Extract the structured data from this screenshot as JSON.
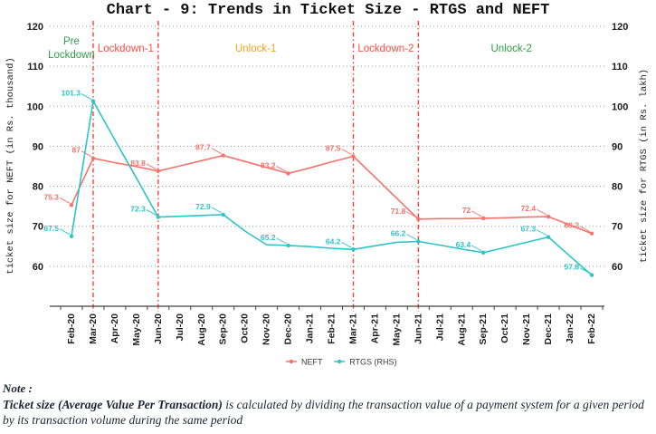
{
  "title": "Chart - 9: Trends in Ticket Size - RTGS and NEFT",
  "chart_data": {
    "type": "line",
    "x": [
      "Feb-20",
      "Mar-20",
      "Apr-20",
      "May-20",
      "Jun-20",
      "Jul-20",
      "Aug-20",
      "Sep-20",
      "Oct-20",
      "Nov-20",
      "Dec-20",
      "Jan-21",
      "Feb-21",
      "Mar-21",
      "Apr-21",
      "May-21",
      "Jun-21",
      "Jul-21",
      "Aug-21",
      "Sep-21",
      "Oct-21",
      "Nov-21",
      "Dec-21",
      "Jan-22",
      "Feb-22"
    ],
    "series": [
      {
        "name": "NEFT",
        "axis": "left",
        "color": "#f4736b",
        "values": [
          75.3,
          87,
          85.9,
          84.9,
          83.8,
          85.1,
          86.4,
          87.7,
          86.2,
          84.7,
          83.2,
          84.6,
          86.1,
          87.5,
          82.3,
          77.0,
          71.8,
          71.9,
          71.9,
          72,
          72.1,
          72.3,
          72.4,
          70.3,
          68.2
        ],
        "point_labels": [
          75.3,
          87,
          null,
          null,
          83.8,
          null,
          null,
          87.7,
          null,
          null,
          83.2,
          null,
          null,
          87.5,
          null,
          null,
          71.8,
          null,
          null,
          72,
          null,
          null,
          72.4,
          null,
          68.2
        ]
      },
      {
        "name": "RTGS (RHS)",
        "axis": "right",
        "color": "#2cc4c7",
        "values": [
          67.5,
          101.3,
          91.6,
          82.0,
          72.3,
          72.5,
          72.7,
          72.9,
          68.8,
          65.4,
          65.2,
          64.9,
          64.5,
          64.2,
          65.1,
          66.0,
          66.2,
          65.3,
          64.3,
          63.4,
          64.7,
          66.0,
          67.3,
          62.5,
          57.8
        ],
        "point_labels": [
          67.5,
          101.3,
          null,
          null,
          72.3,
          null,
          null,
          72.9,
          null,
          null,
          65.2,
          null,
          null,
          64.2,
          null,
          null,
          66.2,
          null,
          null,
          63.4,
          null,
          null,
          67.3,
          null,
          57.8
        ]
      }
    ],
    "left_axis": {
      "title": "ticket size for NEFT (in Rs. thousand)",
      "ticks": [
        60,
        70,
        80,
        90,
        100,
        110,
        120
      ],
      "range": [
        50,
        120
      ]
    },
    "right_axis": {
      "title": "ticket size for RTGS (in Rs. lakh)",
      "ticks": [
        60,
        70,
        80,
        90,
        100,
        110,
        120
      ],
      "range": [
        50,
        120
      ]
    },
    "dividers": [
      "Mar-20",
      "Jun-20",
      "Mar-21",
      "Jun-21"
    ],
    "divider_color": "#f93f38",
    "grid": true,
    "periods": [
      {
        "label": "Pre Lockdown",
        "lines": [
          "Pre",
          "Lockdown"
        ],
        "color": "#2f9e44",
        "from": null,
        "to": "Mar-20"
      },
      {
        "label": "Lockdown-1",
        "lines": null,
        "color": "#fb4d42",
        "from": "Mar-20",
        "to": "Jun-20"
      },
      {
        "label": "Unlock-1",
        "lines": null,
        "color": "#f5a118",
        "from": "Jun-20",
        "to": "Mar-21"
      },
      {
        "label": "Lockdown-2",
        "lines": null,
        "color": "#fb4d42",
        "from": "Mar-21",
        "to": "Jun-21"
      },
      {
        "label": "Unlock-2",
        "lines": null,
        "color": "#2f9e44",
        "from": "Jun-21",
        "to": null
      }
    ],
    "legend": [
      {
        "label": "NEFT",
        "color": "#f4736b"
      },
      {
        "label": "RTGS (RHS)",
        "color": "#2cc4c7"
      }
    ],
    "legend_position": "bottom"
  },
  "note": {
    "heading": "Note :",
    "term": "Ticket size (Average Value Per Transaction)",
    "definition": " is calculated by dividing the transaction value of a payment system for a given period by its transaction volume during the same period"
  }
}
